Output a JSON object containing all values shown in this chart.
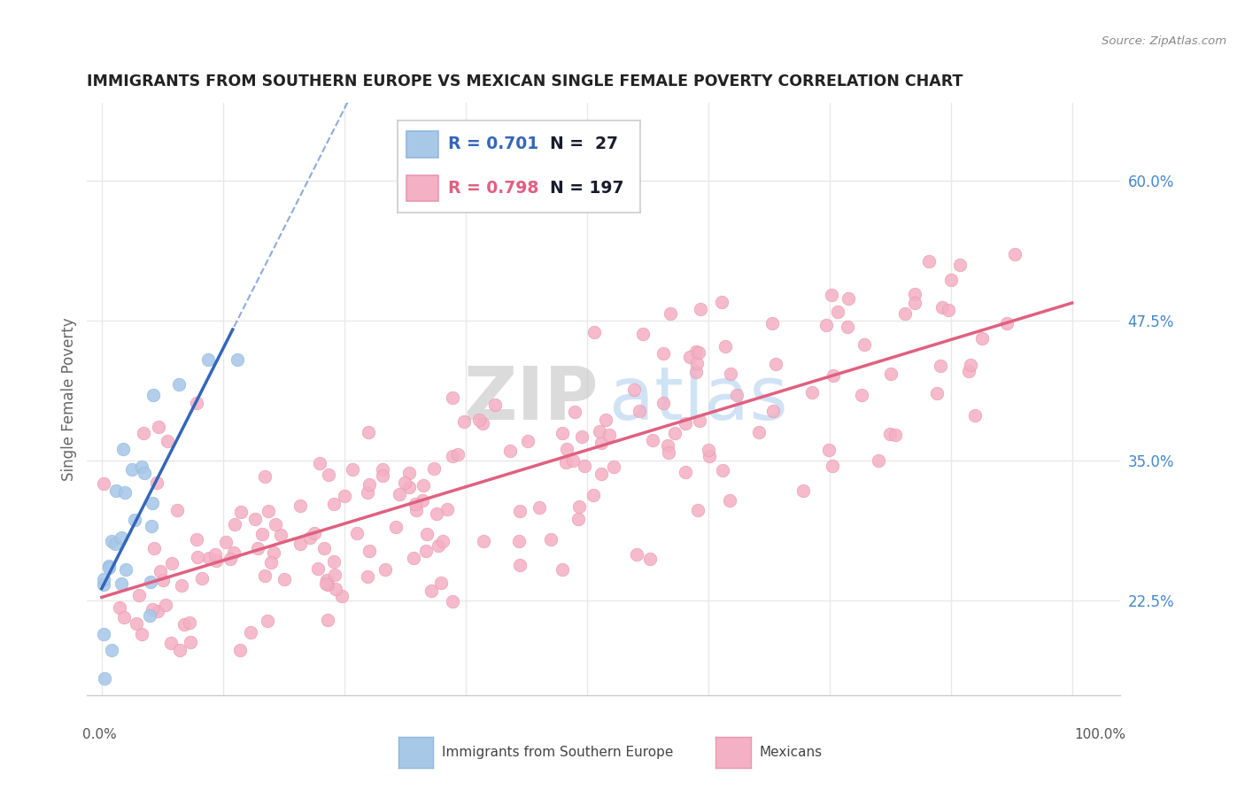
{
  "title": "IMMIGRANTS FROM SOUTHERN EUROPE VS MEXICAN SINGLE FEMALE POVERTY CORRELATION CHART",
  "source": "Source: ZipAtlas.com",
  "ylabel": "Single Female Poverty",
  "series1_label": "Immigrants from Southern Europe",
  "series1_R": "0.701",
  "series1_N": "27",
  "series1_color": "#a8c8e8",
  "series1_edge": "#90b8de",
  "series1_line_color": "#3366bb",
  "series2_label": "Mexicans",
  "series2_R": "0.798",
  "series2_N": "197",
  "series2_color": "#f4b0c4",
  "series2_edge": "#e898b0",
  "series2_line_color": "#e06080",
  "watermark_zip": "ZIP",
  "watermark_atlas": "atlas",
  "background_color": "#ffffff",
  "grid_color": "#e8e8e8",
  "yticks": [
    0.225,
    0.35,
    0.475,
    0.6
  ],
  "ytick_labels": [
    "22.5%",
    "35.0%",
    "47.5%",
    "60.0%"
  ],
  "xlim": [
    -0.015,
    1.05
  ],
  "ylim": [
    0.14,
    0.67
  ]
}
